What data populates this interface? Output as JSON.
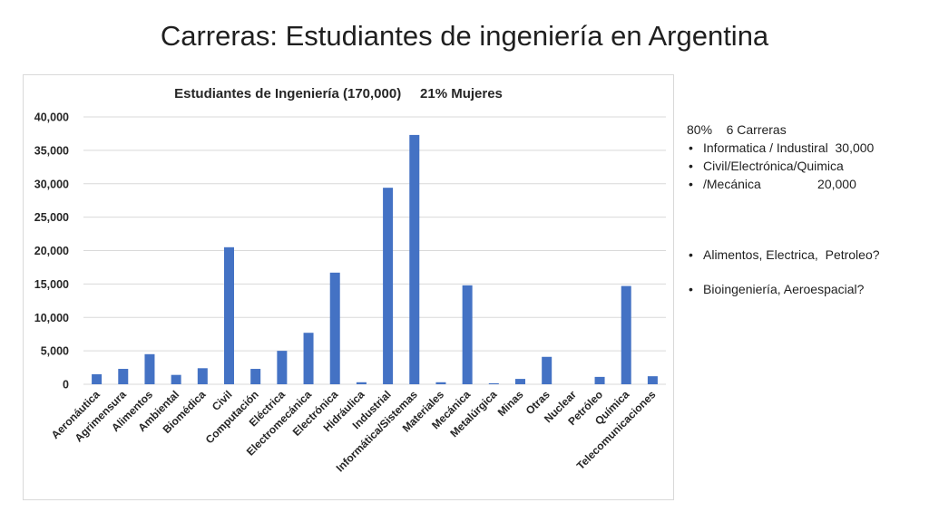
{
  "slide": {
    "title": "Carreras: Estudiantes de ingeniería en Argentina"
  },
  "notes": {
    "header": "80%    6 Carreras",
    "group1": [
      "Informatica / Industiral  30,000",
      "Civil/Electrónica/Quimica",
      "/Mecánica                20,000"
    ],
    "group2": [
      "Alimentos, Electrica,  Petroleo?"
    ],
    "group3": [
      "Bioingeniería, Aeroespacial?"
    ]
  },
  "chart_data": {
    "type": "bar",
    "title": "Estudiantes de Ingeniería (170,000)     21% Mujeres",
    "categories": [
      "Aeronáutica",
      "Agrimensura",
      "Alimentos",
      "Ambiental",
      "Biomédica",
      "Civil",
      "Computación",
      "Eléctrica",
      "Electromecánica",
      "Electrónica",
      "Hidráulica",
      "Industrial",
      "Informática/Sistemas",
      "Materiales",
      "Mecánica",
      "Metalúrgica",
      "Minas",
      "Otras",
      "Nuclear",
      "Petróleo",
      "Química",
      "Telecomunicaciones"
    ],
    "values": [
      1500,
      2300,
      4500,
      1400,
      2400,
      20500,
      2300,
      5000,
      7700,
      16700,
      300,
      29400,
      37300,
      300,
      14800,
      150,
      800,
      4100,
      0,
      1100,
      14700,
      1200
    ],
    "ylim": [
      0,
      40000
    ],
    "yticks": [
      "0",
      "5,000",
      "10,000",
      "15,000",
      "20,000",
      "25,000",
      "30,000",
      "35,000",
      "40,000"
    ],
    "grid": true,
    "bar_color": "#4472c4",
    "grid_color": "#d9d9d9"
  }
}
